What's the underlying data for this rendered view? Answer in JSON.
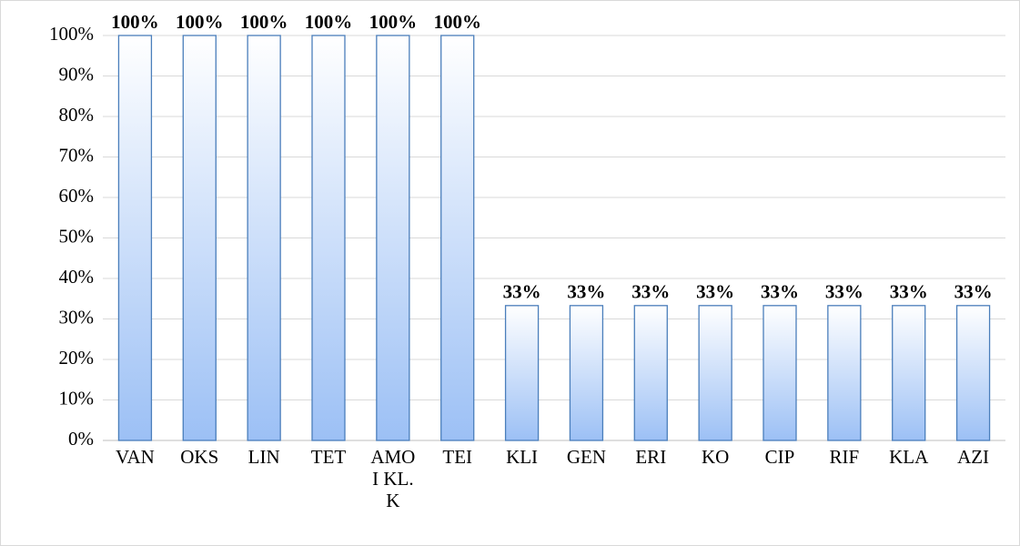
{
  "chart_data": {
    "type": "bar",
    "categories": [
      "VAN",
      "OKS",
      "LIN",
      "TET",
      "AMOI KL.K",
      "TEI",
      "KLI",
      "GEN",
      "ERI",
      "KO",
      "CIP",
      "RIF",
      "KLA",
      "AZI"
    ],
    "values": [
      100,
      100,
      100,
      100,
      100,
      100,
      33.3,
      33.3,
      33.3,
      33.3,
      33.3,
      33.3,
      33.3,
      33.3
    ],
    "value_labels": [
      "100%",
      "100%",
      "100%",
      "100%",
      "100%",
      "100%",
      "33%",
      "33%",
      "33%",
      "33%",
      "33%",
      "33%",
      "33%",
      "33%"
    ],
    "color": "#9cc0f5",
    "ylim": [
      0,
      100
    ],
    "yticks": [
      {
        "value": 0,
        "label": "0%"
      },
      {
        "value": 10,
        "label": "10%"
      },
      {
        "value": 20,
        "label": "20%"
      },
      {
        "value": 30,
        "label": "30%"
      },
      {
        "value": 40,
        "label": "40%"
      },
      {
        "value": 50,
        "label": "50%"
      },
      {
        "value": 60,
        "label": "60%"
      },
      {
        "value": 70,
        "label": "70%"
      },
      {
        "value": 80,
        "label": "80%"
      },
      {
        "value": 90,
        "label": "90%"
      },
      {
        "value": 100,
        "label": "100%"
      }
    ],
    "grid": true
  }
}
